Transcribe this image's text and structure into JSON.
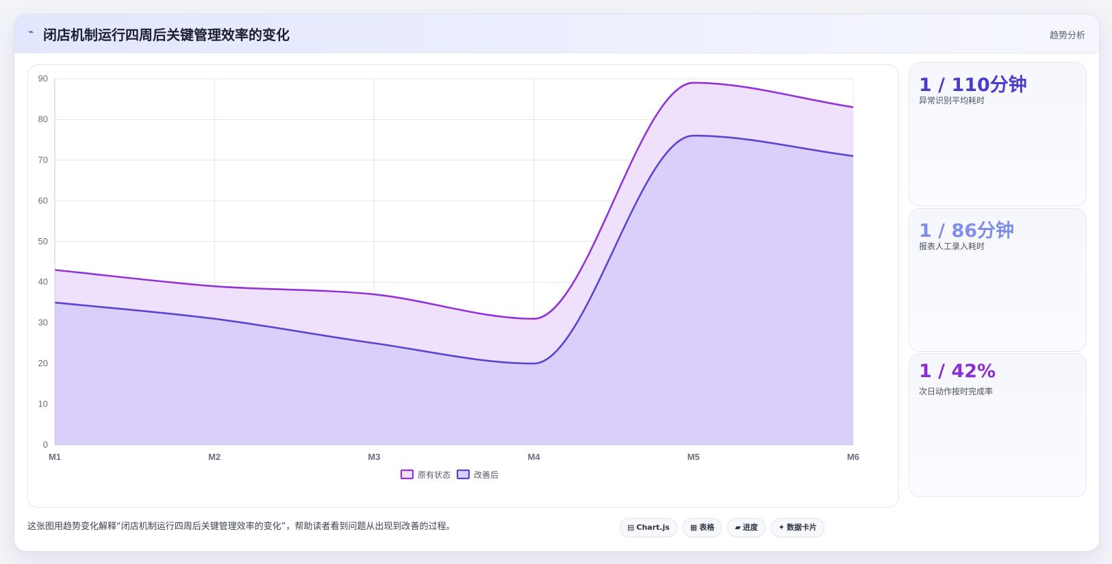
{
  "header": {
    "icon": "⌁",
    "title": "闭店机制运行四周后关键管理效率的变化",
    "tag": "趋势分析"
  },
  "chart_data": {
    "type": "area",
    "categories": [
      "M1",
      "M2",
      "M3",
      "M4",
      "M5",
      "M6"
    ],
    "ylim": [
      0,
      90
    ],
    "yticks": [
      0,
      10,
      20,
      30,
      40,
      50,
      60,
      70,
      80,
      90
    ],
    "grid": true,
    "legend_position": "bottom",
    "series": [
      {
        "name": "原有状态",
        "values": [
          43,
          39,
          37,
          31,
          89,
          83
        ],
        "color": "#9333d6",
        "fill": "#efe1fb"
      },
      {
        "name": "改善后",
        "values": [
          35,
          31,
          25,
          20,
          76,
          71
        ],
        "color": "#5a45d0",
        "fill": "#dacffa"
      }
    ]
  },
  "stats": [
    {
      "value": "1 / 110分钟",
      "label": "异常识别平均耗时",
      "color": "#4c3cc7"
    },
    {
      "value": "1 / 86分钟",
      "label": "报表人工录入耗时",
      "color": "#7f8ee6"
    },
    {
      "value": "1 / 42%",
      "label": "次日动作按时完成率",
      "color": "#8a2fd2"
    }
  ],
  "footer": {
    "note": "这张图用趋势变化解释“闭店机制运行四周后关键管理效率的变化”，帮助读者看到问题从出现到改善的过程。",
    "chips": [
      {
        "icon": "▤",
        "label": "Chart.js"
      },
      {
        "icon": "▦",
        "label": "表格"
      },
      {
        "icon": "▰",
        "label": "进度"
      },
      {
        "icon": "✦",
        "label": "数据卡片"
      }
    ]
  }
}
